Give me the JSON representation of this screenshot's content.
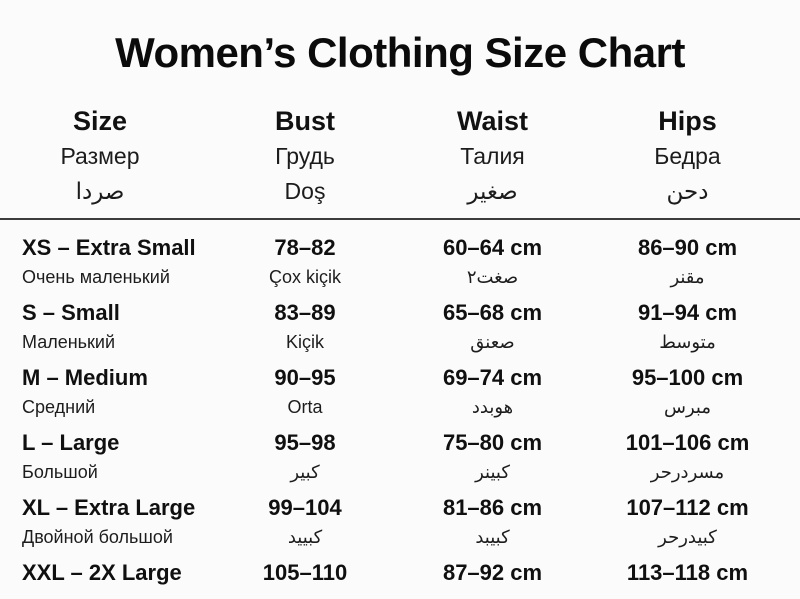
{
  "title": "Women’s Clothing Size Chart",
  "colors": {
    "background": "#fbfbfb",
    "text": "#161616",
    "divider": "#3c3c3c"
  },
  "table": {
    "columns": [
      {
        "en": "Size",
        "ru": "Размер",
        "alt": "صردا"
      },
      {
        "en": "Bust",
        "ru": "Грудь",
        "alt": "Doş"
      },
      {
        "en": "Waist",
        "ru": "Талия",
        "alt": "صغير"
      },
      {
        "en": "Hips",
        "ru": "Бедра",
        "alt": "دحن"
      }
    ],
    "rows": [
      {
        "size": "XS – Extra Small",
        "size_alt": "Очень маленький",
        "bust": "78–82",
        "bust_alt": "Çox kiçik",
        "waist": "60–64 cm",
        "waist_alt": "صغت٢",
        "hips": "86–90 cm",
        "hips_alt": "مقنر"
      },
      {
        "size": "S – Small",
        "size_alt": "Маленький",
        "bust": "83–89",
        "bust_alt": "Kiçik",
        "waist": "65–68 cm",
        "waist_alt": "صعنق",
        "hips": "91–94 cm",
        "hips_alt": "متوسط"
      },
      {
        "size": "M – Medium",
        "size_alt": "Средний",
        "bust": "90–95",
        "bust_alt": "Orta",
        "waist": "69–74 cm",
        "waist_alt": "هوبدد",
        "hips": "95–100 cm",
        "hips_alt": "مبرس"
      },
      {
        "size": "L – Large",
        "size_alt": "Большой",
        "bust": "95–98",
        "bust_alt": "كبير",
        "waist": "75–80 cm",
        "waist_alt": "كبينر",
        "hips": "101–106 cm",
        "hips_alt": "مسردرحر"
      },
      {
        "size": "XL – Extra Large",
        "size_alt": "Двойной большой",
        "bust": "99–104",
        "bust_alt": "كبييد",
        "waist": "81–86 cm",
        "waist_alt": "كبيبد",
        "hips": "107–112 cm",
        "hips_alt": "كبيدرحر"
      },
      {
        "size": "XXL – 2X Large",
        "bust": "105–110",
        "waist": "87–92 cm",
        "hips": "113–118 cm"
      }
    ]
  }
}
